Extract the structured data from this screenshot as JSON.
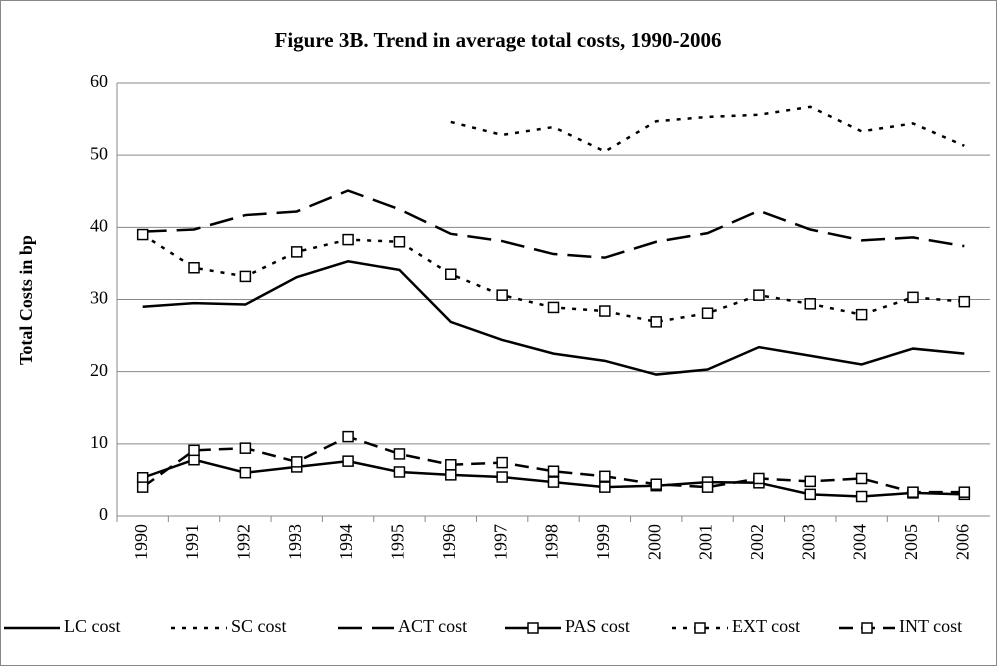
{
  "chart_data": {
    "type": "line",
    "title": "Figure 3B. Trend in average total costs, 1990-2006",
    "y_label": "Total Costs in bp",
    "categories": [
      "1990",
      "1991",
      "1992",
      "1993",
      "1994",
      "1995",
      "1996",
      "1997",
      "1998",
      "1999",
      "2000",
      "2001",
      "2002",
      "2003",
      "2004",
      "2005",
      "2006"
    ],
    "ylim": [
      0,
      60
    ],
    "yticks": [
      0,
      10,
      20,
      30,
      40,
      50,
      60
    ],
    "grid": true,
    "legend": "bottom",
    "series": [
      {
        "name": "LC cost",
        "color": "#000000",
        "line_style": "solid",
        "marker": "none",
        "values": [
          29.0,
          29.5,
          29.3,
          33.1,
          35.3,
          34.1,
          26.9,
          24.4,
          22.5,
          21.5,
          19.6,
          20.3,
          23.4,
          22.2,
          21.0,
          23.2,
          22.5
        ]
      },
      {
        "name": "SC cost",
        "color": "#000000",
        "line_style": "dotted",
        "marker": "none",
        "values": [
          null,
          null,
          null,
          null,
          null,
          null,
          54.6,
          52.8,
          53.9,
          50.5,
          54.7,
          55.3,
          55.6,
          56.7,
          53.3,
          54.4,
          51.3
        ]
      },
      {
        "name": "ACT cost",
        "color": "#000000",
        "line_style": "long-dash",
        "marker": "none",
        "values": [
          39.4,
          39.7,
          41.7,
          42.2,
          45.1,
          42.5,
          39.1,
          38.1,
          36.3,
          35.8,
          38.0,
          39.2,
          42.3,
          39.7,
          38.2,
          38.6,
          37.4
        ]
      },
      {
        "name": "PAS cost",
        "color": "#000000",
        "line_style": "solid",
        "marker": "square",
        "values": [
          5.3,
          7.8,
          6.0,
          6.8,
          7.6,
          6.1,
          5.7,
          5.4,
          4.7,
          4.0,
          4.2,
          4.7,
          4.6,
          3.0,
          2.7,
          3.2,
          3.0
        ]
      },
      {
        "name": "EXT cost",
        "color": "#000000",
        "line_style": "dotted",
        "marker": "square",
        "values": [
          39.0,
          34.4,
          33.2,
          36.6,
          38.3,
          38.0,
          33.5,
          30.6,
          28.9,
          28.4,
          26.9,
          28.1,
          30.6,
          29.4,
          27.9,
          30.3,
          29.7
        ]
      },
      {
        "name": "INT cost",
        "color": "#000000",
        "line_style": "dash",
        "marker": "square",
        "values": [
          4.0,
          9.1,
          9.4,
          7.5,
          11.0,
          8.6,
          7.1,
          7.4,
          6.2,
          5.5,
          4.4,
          4.0,
          5.2,
          4.8,
          5.2,
          3.3,
          3.3
        ]
      }
    ]
  }
}
